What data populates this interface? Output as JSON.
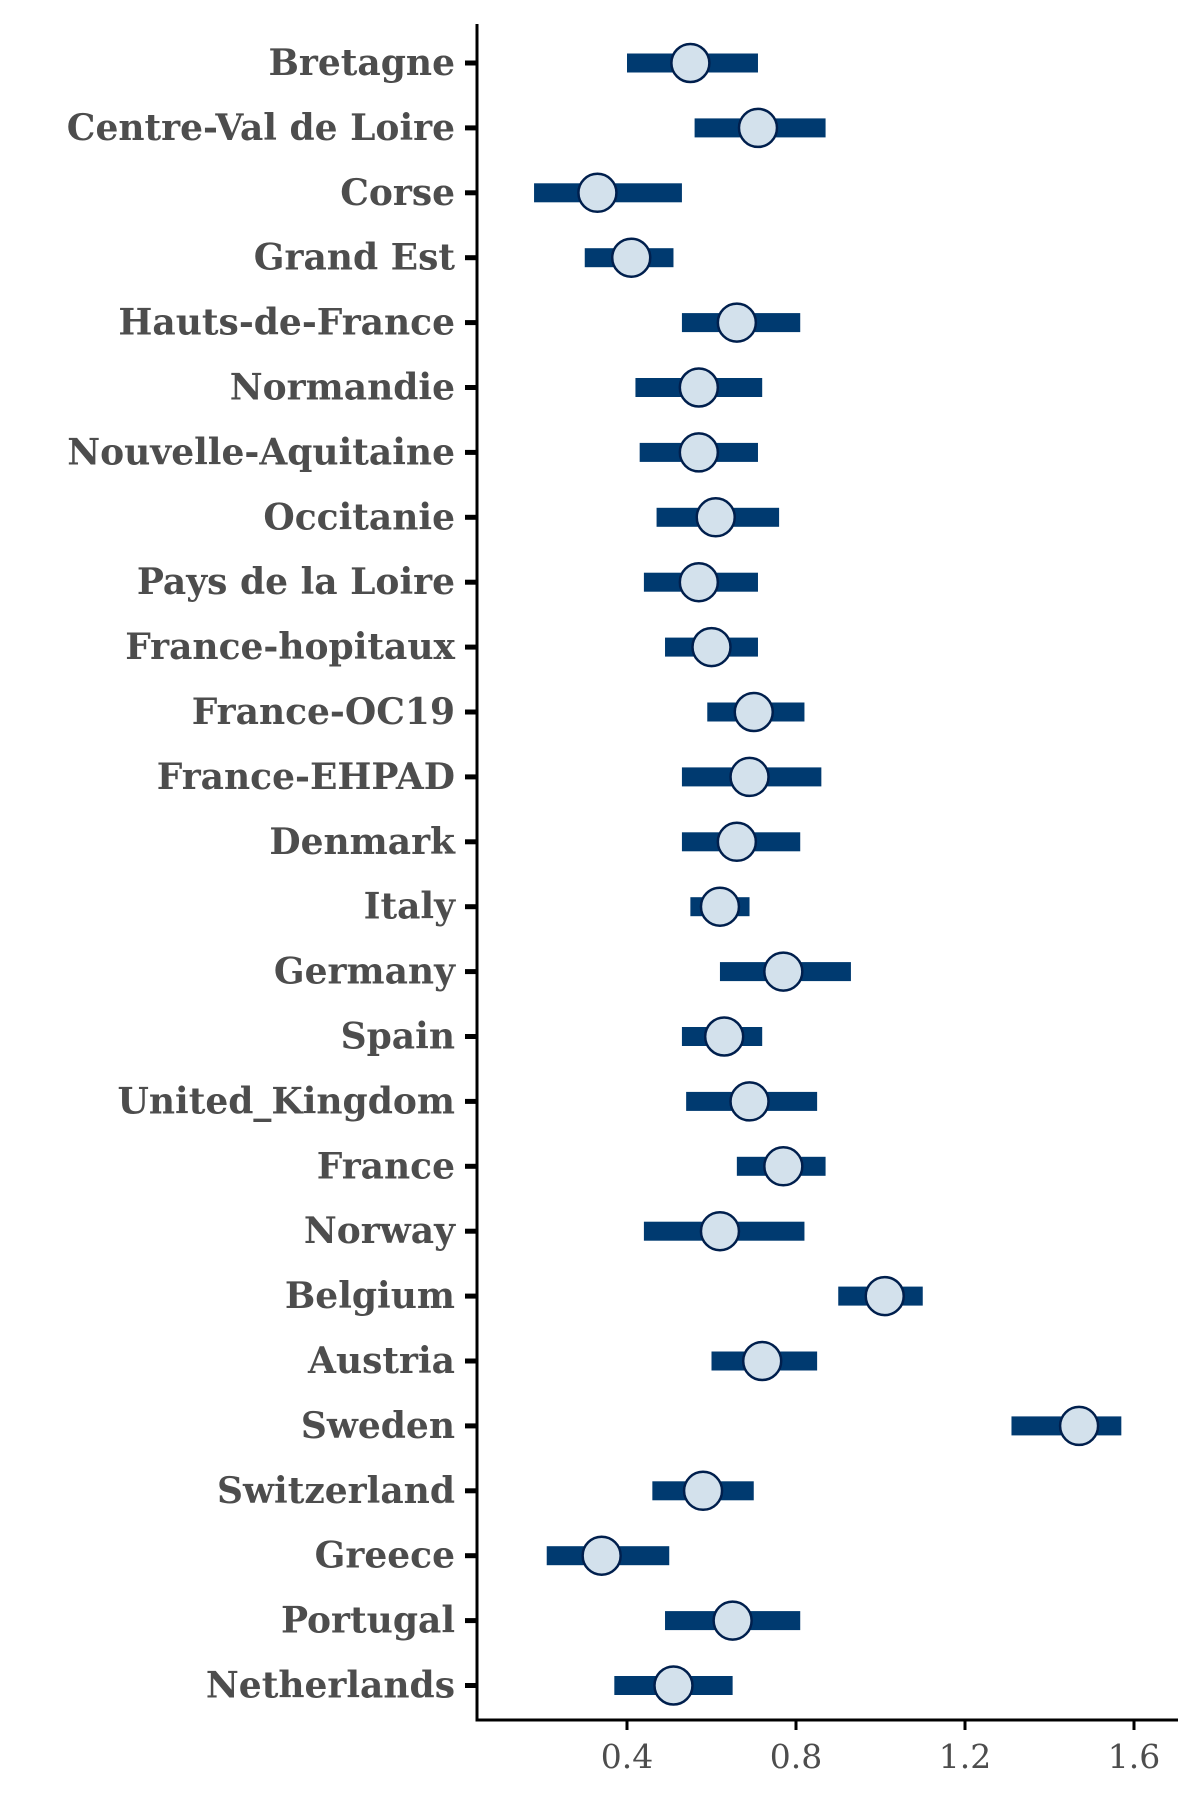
{
  "chart_data": {
    "type": "forest",
    "title": "",
    "xlabel": "",
    "ylabel": "",
    "xlim": [
      0.0,
      1.7
    ],
    "x_ticks": [
      0.4,
      0.8,
      1.2,
      1.6
    ],
    "x_tick_labels": [
      "0.4",
      "0.8",
      "1.2",
      "1.6"
    ],
    "grid": false,
    "legend": "none",
    "colors": {
      "interval": "#003a70",
      "point_fill": "#d3e1ec",
      "point_stroke": "#001f4d",
      "text": "#4d4d4d",
      "axis": "#000000"
    },
    "categories": [
      "Bretagne",
      "Centre-Val de Loire",
      "Corse",
      "Grand Est",
      "Hauts-de-France",
      "Normandie",
      "Nouvelle-Aquitaine",
      "Occitanie",
      "Pays de la Loire",
      "France-hopitaux",
      "France-OC19",
      "France-EHPAD",
      "Denmark",
      "Italy",
      "Germany",
      "Spain",
      "United_Kingdom",
      "France",
      "Norway",
      "Belgium",
      "Austria",
      "Sweden",
      "Switzerland",
      "Greece",
      "Portugal",
      "Netherlands"
    ],
    "estimates": [
      0.55,
      0.71,
      0.33,
      0.41,
      0.66,
      0.57,
      0.57,
      0.61,
      0.57,
      0.6,
      0.7,
      0.69,
      0.66,
      0.62,
      0.77,
      0.63,
      0.69,
      0.77,
      0.62,
      1.01,
      0.72,
      1.47,
      0.58,
      0.34,
      0.65,
      0.51
    ],
    "lower": [
      0.4,
      0.56,
      0.18,
      0.3,
      0.53,
      0.42,
      0.43,
      0.47,
      0.44,
      0.49,
      0.59,
      0.53,
      0.53,
      0.55,
      0.62,
      0.53,
      0.54,
      0.66,
      0.44,
      0.9,
      0.6,
      1.31,
      0.46,
      0.21,
      0.49,
      0.37
    ],
    "upper": [
      0.71,
      0.87,
      0.53,
      0.51,
      0.81,
      0.72,
      0.71,
      0.76,
      0.71,
      0.71,
      0.82,
      0.86,
      0.81,
      0.69,
      0.93,
      0.72,
      0.85,
      0.87,
      0.82,
      1.1,
      0.85,
      1.57,
      0.7,
      0.5,
      0.81,
      0.65
    ]
  }
}
